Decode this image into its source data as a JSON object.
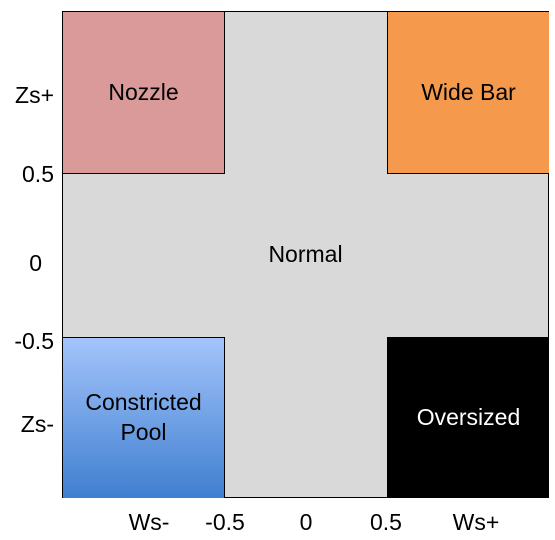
{
  "colors": {
    "background": "#d9d9d9",
    "nozzle": "#da9a9a",
    "wide_bar": "#f5994d",
    "constricted_pool_top": "#a4c4fb",
    "constricted_pool_bottom": "#3f7fd0",
    "oversized": "#000000",
    "oversized_text": "#ffffff"
  },
  "y_axis": {
    "ticks": [
      "Zs+",
      "0.5",
      "0",
      "-0.5",
      "Zs-"
    ]
  },
  "x_axis": {
    "ticks": [
      "Ws-",
      "-0.5",
      "0",
      "0.5",
      "Ws+"
    ]
  },
  "regions": {
    "nozzle": "Nozzle",
    "wide_bar": "Wide Bar",
    "normal": "Normal",
    "constricted_pool": [
      "Constricted",
      "Pool"
    ],
    "oversized": "Oversized"
  }
}
